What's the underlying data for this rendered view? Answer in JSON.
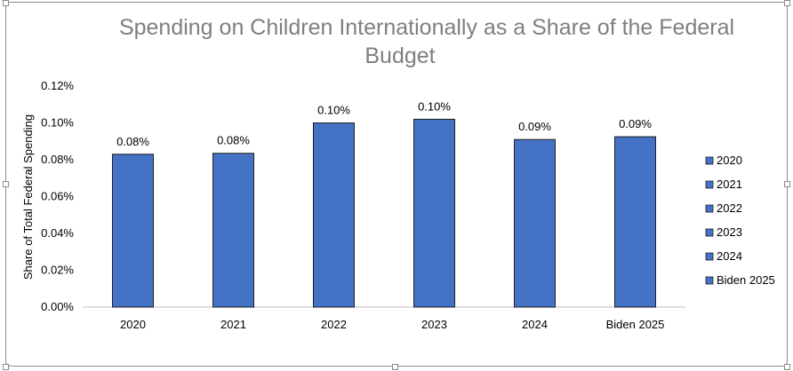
{
  "chart_data": {
    "type": "bar",
    "title": "Spending on Children Internationally as a Share of the Federal Budget",
    "title_lines": [
      "Spending on Children Internationally as a Share of the Federal",
      "Budget"
    ],
    "xlabel": "",
    "ylabel": "Share of Total Federal Spending",
    "categories": [
      "2020",
      "2021",
      "2022",
      "2023",
      "2024",
      "Biden 2025"
    ],
    "values": [
      0.083,
      0.0835,
      0.1,
      0.102,
      0.091,
      0.0925
    ],
    "data_labels": [
      "0.08%",
      "0.08%",
      "0.10%",
      "0.10%",
      "0.09%",
      "0.09%"
    ],
    "ylim": [
      0,
      0.12
    ],
    "yticks": [
      "0.00%",
      "0.02%",
      "0.04%",
      "0.06%",
      "0.08%",
      "0.10%",
      "0.12%"
    ],
    "ytick_values": [
      0,
      0.02,
      0.04,
      0.06,
      0.08,
      0.1,
      0.12
    ],
    "grid": false,
    "legend_placement": "right",
    "legend_entries": [
      "2020",
      "2021",
      "2022",
      "2023",
      "2024",
      "Biden 2025"
    ],
    "colors": {
      "bar": "#4472c4",
      "bar_stroke": "#1f1f1f",
      "title": "#7f7f7f",
      "text": "#000000",
      "axis": "#bfbfbf"
    }
  }
}
